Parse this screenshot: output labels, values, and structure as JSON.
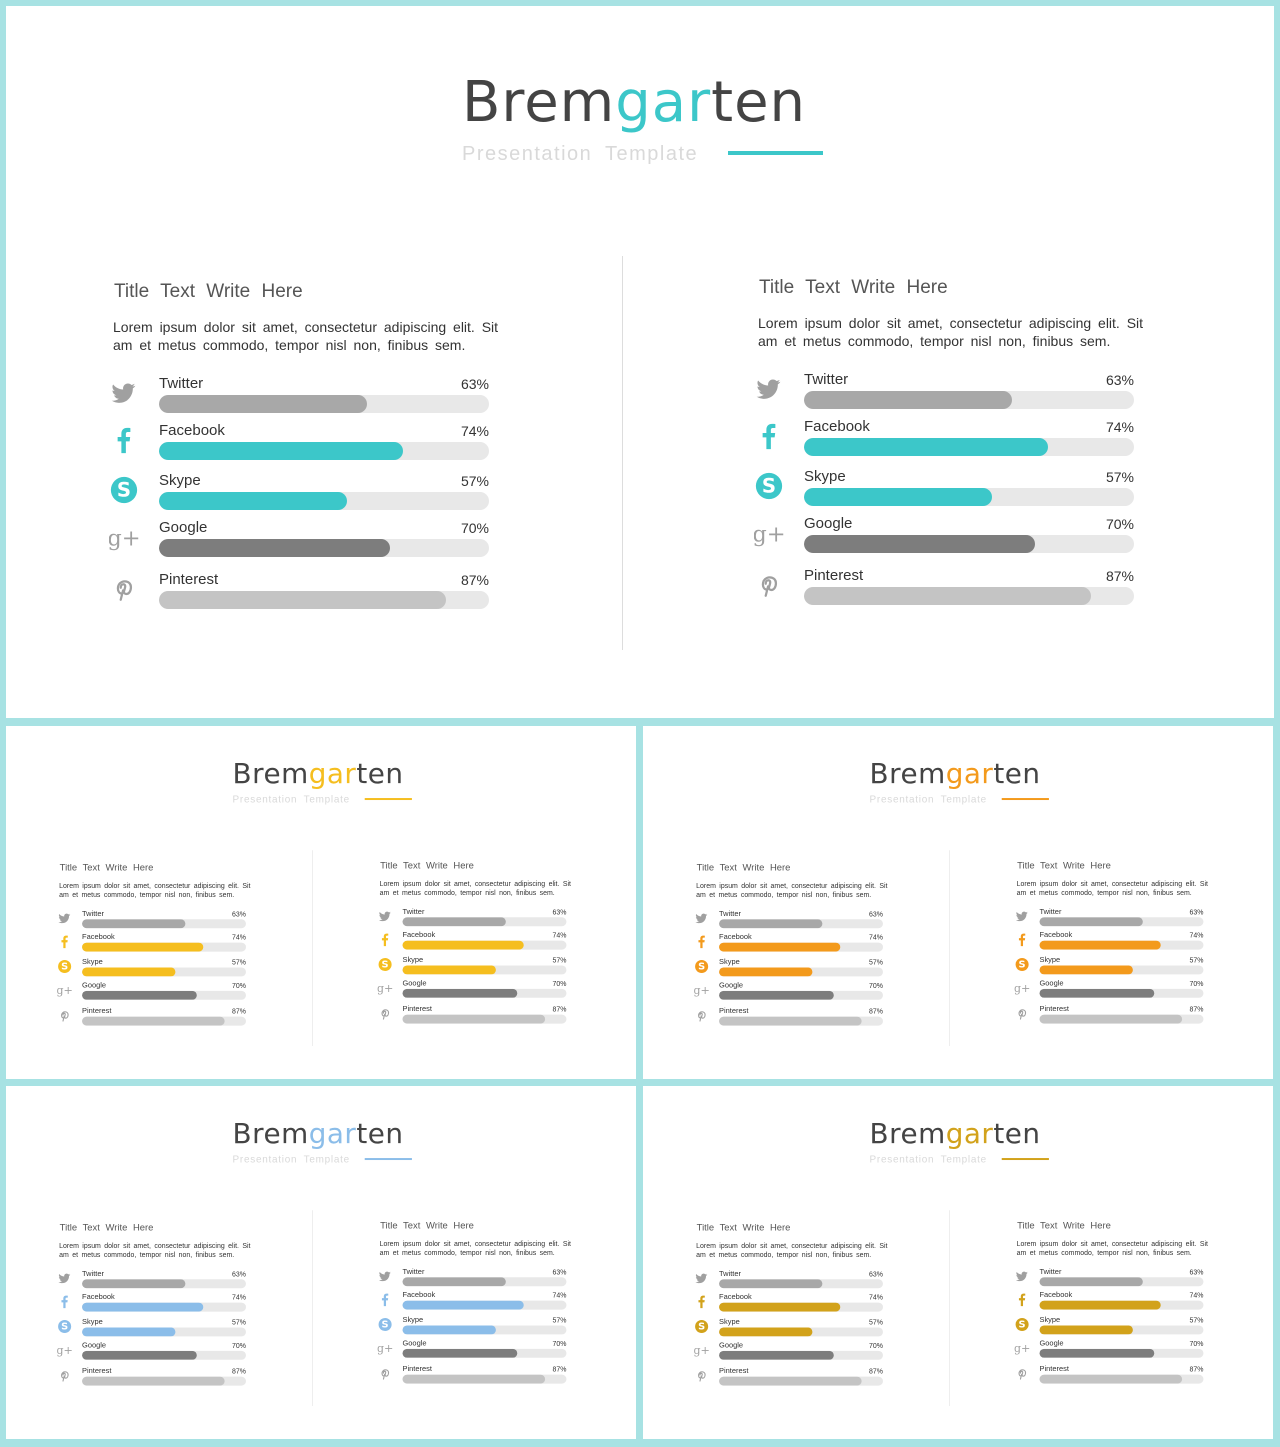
{
  "brand": {
    "prefix": "Brem",
    "accent": "gar",
    "suffix": "ten"
  },
  "subtitle": "Presentation Template",
  "panel_title": "Title Text Write Here",
  "panel_body": "Lorem ipsum dolor sit amet, consectetur adipiscing elit. Sit am et metus commodo, tempor nisl non, finibus sem.",
  "metrics": [
    {
      "label": "Twitter",
      "value": "63%",
      "fraction": 0.63,
      "icon": "twitter-icon",
      "tone": "gray"
    },
    {
      "label": "Facebook",
      "value": "74%",
      "fraction": 0.74,
      "icon": "facebook-icon",
      "tone": "accent"
    },
    {
      "label": "Skype",
      "value": "57%",
      "fraction": 0.57,
      "icon": "skype-icon",
      "tone": "accent"
    },
    {
      "label": "Google",
      "value": "70%",
      "fraction": 0.7,
      "icon": "google-plus-icon",
      "tone": "dark"
    },
    {
      "label": "Pinterest",
      "value": "87%",
      "fraction": 0.87,
      "icon": "pinterest-icon",
      "tone": "light"
    }
  ],
  "colors": {
    "frame": "#a7e2e3",
    "bar_track": "#e8e8e8",
    "bar_gray": "#a8a8a8",
    "bar_dark": "#7d7d7d",
    "bar_light": "#c4c4c4",
    "icon_gray": "#a0a0a0"
  },
  "slides": [
    {
      "variant": "teal",
      "accent": "#3cc7c9"
    },
    {
      "variant": "yellow",
      "accent": "#f5be1f"
    },
    {
      "variant": "orange",
      "accent": "#f39a1c"
    },
    {
      "variant": "light-blue",
      "accent": "#8bbde9"
    },
    {
      "variant": "gold",
      "accent": "#d2a21b"
    }
  ]
}
